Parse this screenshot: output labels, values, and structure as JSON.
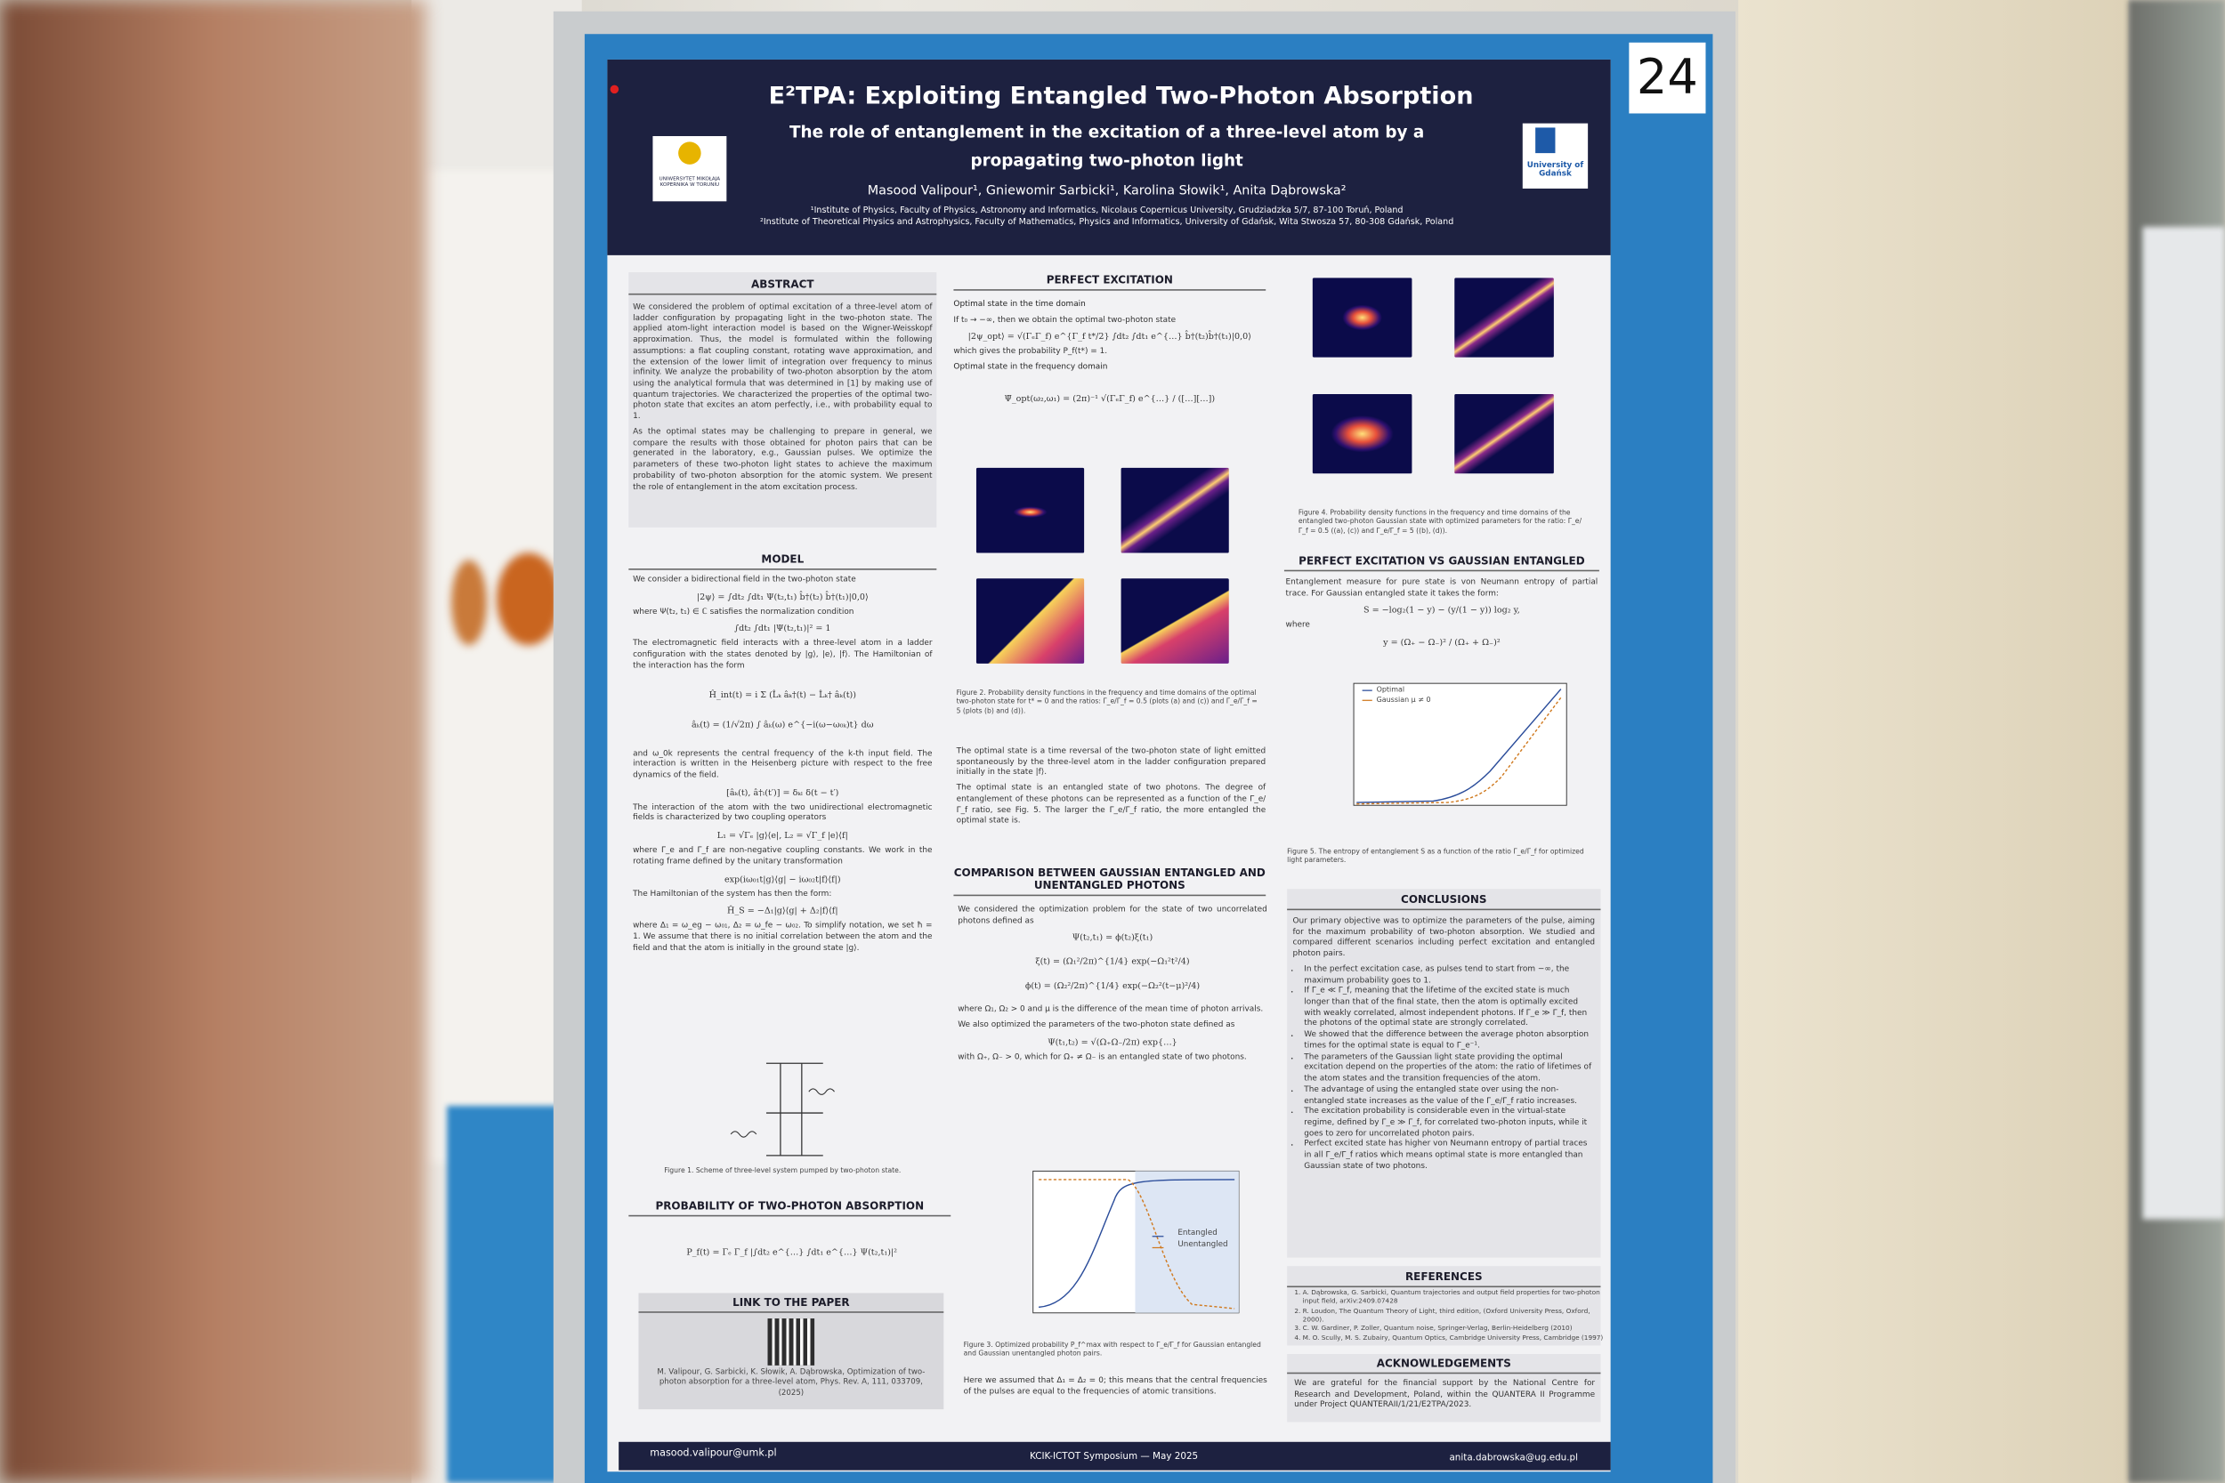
{
  "poster_number": "24",
  "header": {
    "title": "E²TPA: Exploiting Entangled Two-Photon Absorption",
    "subtitle": "The role of entanglement in the excitation of a three-level atom by a propagating two-photon light",
    "authors": "Masood Valipour¹, Gniewomir Sarbicki¹, Karolina Słowik¹, Anita Dąbrowska²",
    "affiliation_1": "¹Institute of Physics, Faculty of Physics, Astronomy and Informatics, Nicolaus Copernicus University, Grudziadzka 5/7, 87-100 Toruń, Poland",
    "affiliation_2": "²Institute of Theoretical Physics and Astrophysics, Faculty of Mathematics, Physics and Informatics, University of Gdańsk, Wita Stwosza 57, 80-308 Gdańsk, Poland",
    "logo_left": "UNIWERSYTET MIKOŁAJA KOPERNIKA W TORUNIU",
    "logo_right": "University of Gdańsk"
  },
  "abstract": {
    "heading": "ABSTRACT",
    "paragraphs": [
      "We considered the problem of optimal excitation of a three-level atom of ladder configuration by propagating light in the two-photon state. The applied atom-light interaction model is based on the Wigner-Weisskopf approximation. Thus, the model is formulated within the following assumptions: a flat coupling constant, rotating wave approximation, and the extension of the lower limit of integration over frequency to minus infinity. We analyze the probability of two-photon absorption by the atom using the analytical formula that was determined in [1] by making use of quantum trajectories. We characterized the properties of the optimal two-photon state that excites an atom perfectly, i.e., with probability equal to 1.",
      "As the optimal states may be challenging to prepare in general, we compare the results with those obtained for photon pairs that can be generated in the laboratory, e.g., Gaussian pulses. We optimize the parameters of these two-photon light states to achieve the maximum probability of two-photon absorption for the atomic system. We present the role of entanglement in the atom excitation process."
    ]
  },
  "model": {
    "heading": "MODEL",
    "paragraphs": [
      "We consider a bidirectional field in the two-photon state",
      "where Ψ(t₂, t₁) ∈ ℂ satisfies the normalization condition",
      "The electromagnetic field interacts with a three-level atom in a ladder configuration with the states denoted by |g⟩, |e⟩, |f⟩. The Hamiltonian of the interaction has the form",
      "and ω_0k represents the central frequency of the k-th input field. The interaction is written in the Heisenberg picture with respect to the free dynamics of the field.",
      "The interaction of the atom with the two unidirectional electromagnetic fields is characterized by two coupling operators",
      "where Γ_e and Γ_f are non-negative coupling constants. We work in the rotating frame defined by the unitary transformation",
      "The Hamiltonian of the system has then the form:",
      "where Δ₁ = ω_eg − ω₀₁, Δ₂ = ω_fe − ω₀₂. To simplify notation, we set ħ = 1. We assume that there is no initial correlation between the atom and the field and that the atom is initially in the ground state |g⟩."
    ],
    "figure_caption": "Figure 1. Scheme of three-level system pumped by two-photon state."
  },
  "probability": {
    "heading": "PROBABILITY OF TWO-PHOTON ABSORPTION"
  },
  "link": {
    "heading": "LINK TO THE PAPER",
    "citation": "M. Valipour, G. Sarbicki, K. Słowik, A. Dąbrowska, Optimization of two-photon absorption for a three-level atom, Phys. Rev. A, 111, 033709, (2025)"
  },
  "perfect_excitation": {
    "heading": "PERFECT EXCITATION",
    "sub_1": "Optimal state in the time domain",
    "text_1": "If t₀ → −∞, then we obtain the optimal two-photon state",
    "text_2": "which gives the probability P_f(t*) = 1.",
    "sub_2": "Optimal state in the frequency domain",
    "figure_caption": "Figure 2. Probability density functions in the frequency and time domains of the optimal two-photon state for t* = 0 and the ratios: Γ_e/Γ_f = 0.5 (plots (a) and (c)) and Γ_e/Γ_f = 5 (plots (b) and (d)).",
    "paragraphs": [
      "The optimal state is a time reversal of the two-photon state of light emitted spontaneously by the three-level atom in the ladder configuration prepared initially in the state |f⟩.",
      "The optimal state is an entangled state of two photons. The degree of entanglement of these photons can be represented as a function of the Γ_e/Γ_f ratio, see Fig. 5. The larger the Γ_e/Γ_f ratio, the more entangled the optimal state is."
    ]
  },
  "comparison": {
    "heading": "COMPARISON BETWEEN GAUSSIAN ENTANGLED AND UNENTANGLED PHOTONS",
    "paragraphs": [
      "We considered the optimization problem for the state of two uncorrelated photons defined as",
      "where Ω₁, Ω₂ > 0 and μ is the difference of the mean time of photon arrivals.",
      "We also optimized the parameters of the two-photon state defined as",
      "with Ω₊, Ω₋ > 0, which for Ω₊ ≠ Ω₋ is an entangled state of two photons."
    ],
    "legend": [
      "Entangled",
      "Unentangled"
    ],
    "figure_caption": "Figure 3. Optimized probability P_f^max with respect to Γ_e/Γ_f for Gaussian entangled and Gaussian unentangled photon pairs.",
    "final": "Here we assumed that Δ₁ = Δ₂ = 0; this means that the central frequencies of the pulses are equal to the frequencies of atomic transitions."
  },
  "figure_4_caption": "Figure 4. Probability density functions in the frequency and time domains of the entangled two-photon Gaussian state with optimized parameters for the ratio: Γ_e/Γ_f = 0.5 ((a), (c)) and Γ_e/Γ_f = 5 ((b), (d)).",
  "vs": {
    "heading": "PERFECT EXCITATION VS GAUSSIAN ENTANGLED",
    "text": "Entanglement measure for pure state is von Neumann entropy of partial trace. For Gaussian entangled state it takes the form:",
    "where": "where",
    "legend": [
      "Optimal",
      "Gaussian μ ≠ 0"
    ],
    "figure_caption": "Figure 5. The entropy of entanglement S as a function of the ratio Γ_e/Γ_f for optimized light parameters."
  },
  "conclusions": {
    "heading": "CONCLUSIONS",
    "intro": "Our primary objective was to optimize the parameters of the pulse, aiming for the maximum probability of two-photon absorption. We studied and compared different scenarios including perfect excitation and entangled photon pairs.",
    "items": [
      "In the perfect excitation case, as pulses tend to start from −∞, the maximum probability goes to 1.",
      "If Γ_e ≪ Γ_f, meaning that the lifetime of the excited state is much longer than that of the final state, then the atom is optimally excited with weakly correlated, almost independent photons. If Γ_e ≫ Γ_f, then the photons of the optimal state are strongly correlated.",
      "We showed that the difference between the average photon absorption times for the optimal state is equal to Γ_e⁻¹.",
      "The parameters of the Gaussian light state providing the optimal excitation depend on the properties of the atom: the ratio of lifetimes of the atom states and the transition frequencies of the atom.",
      "The advantage of using the entangled state over using the non-entangled state increases as the value of the Γ_e/Γ_f ratio increases.",
      "The excitation probability is considerable even in the virtual-state regime, defined by Γ_e ≫ Γ_f, for correlated two-photon inputs, while it goes to zero for uncorrelated photon pairs.",
      "Perfect excited state has higher von Neumann entropy of partial traces in all Γ_e/Γ_f ratios which means optimal state is more entangled than Gaussian state of two photons."
    ]
  },
  "references": {
    "heading": "REFERENCES",
    "items": [
      "A. Dąbrowska, G. Sarbicki, Quantum trajectories and output field properties for two-photon input field, arXiv:2409.07428",
      "R. Loudon, The Quantum Theory of Light, third edition, (Oxford University Press, Oxford, 2000).",
      "C. W. Gardiner, P. Zoller, Quantum noise, Springer-Verlag, Berlin-Heidelberg (2010)",
      "M. O. Scully, M. S. Zubairy, Quantum Optics, Cambridge University Press, Cambridge (1997)"
    ]
  },
  "acknowledgements": {
    "heading": "ACKNOWLEDGEMENTS",
    "text": "We are grateful for the financial support by the National Centre for Research and Development, Poland, within the QUANTERA II Programme under Project QUANTERAII/1/21/E2TPA/2023."
  },
  "footer": {
    "left": "masood.valipour@umk.pl",
    "center": "KCIK-ICTOT Symposium — May 2025",
    "right": "anita.dabrowska@ug.edu.pl"
  }
}
